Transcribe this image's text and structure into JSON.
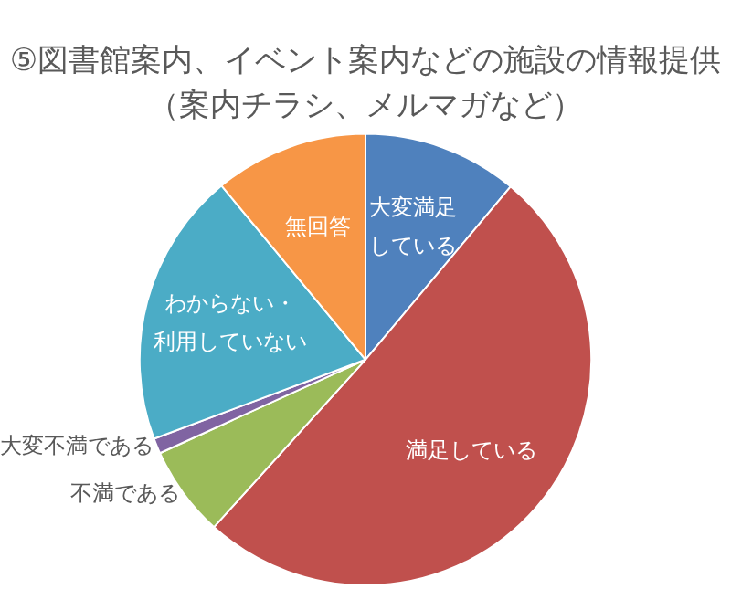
{
  "chart_data": {
    "type": "pie",
    "title": "⑤図書館案内、イベント案内などの施設の情報提供",
    "subtitle": "（案内チラシ、メルマガなど）",
    "categories": [
      "大変満足している",
      "満足している",
      "不満である",
      "大変不満である",
      "わからない・利用していない",
      "無回答"
    ],
    "values": [
      11.1,
      50.6,
      6.5,
      1.1,
      19.7,
      11.0
    ],
    "colors": [
      "#4f81bd",
      "#c0504d",
      "#9bbb59",
      "#8064a2",
      "#4bacc6",
      "#f79646"
    ],
    "legend": false
  }
}
